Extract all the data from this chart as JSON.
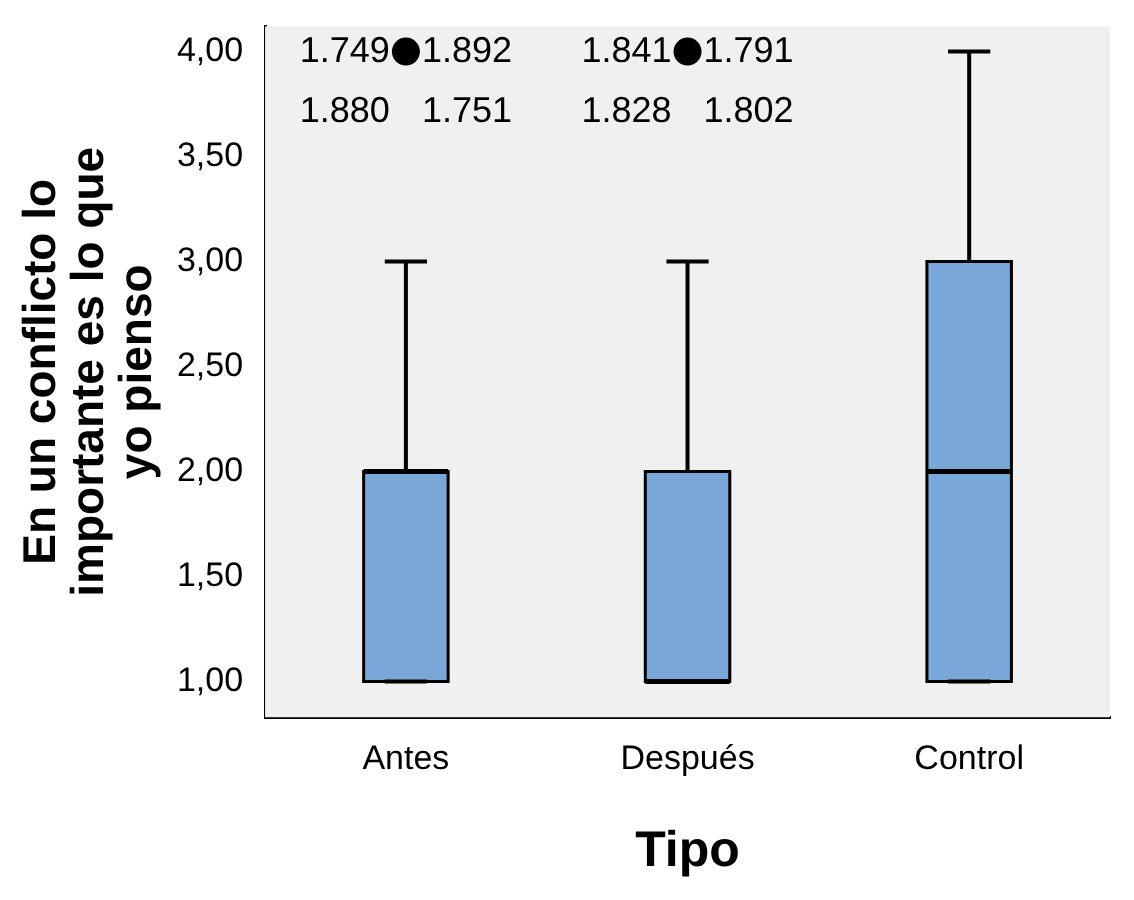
{
  "chart_data": {
    "type": "box",
    "xlabel": "Tipo",
    "ylabel": "En un conflicto lo importante es lo que yo pienso",
    "categories": [
      "Antes",
      "Después",
      "Control"
    ],
    "color": "#79a8d8",
    "boxes": [
      {
        "low": 1,
        "q1": 1,
        "median": 2,
        "q3": 2,
        "high": 3,
        "outliers": [
          4
        ]
      },
      {
        "low": 1,
        "q1": 1,
        "median": 1,
        "q3": 2,
        "high": 3,
        "outliers": [
          4
        ]
      },
      {
        "low": 1,
        "q1": 1,
        "median": 2,
        "q3": 3,
        "high": 4
      }
    ],
    "ylim": [
      0.83,
      4.12
    ],
    "yticks": [
      {
        "value": 1,
        "label": "1,00"
      },
      {
        "value": 1.5,
        "label": "1,50"
      },
      {
        "value": 2,
        "label": "2,00"
      },
      {
        "value": 2.5,
        "label": "2,50"
      },
      {
        "value": 3,
        "label": "3,00"
      },
      {
        "value": 3.5,
        "label": "3,50"
      },
      {
        "value": 4,
        "label": "4,00"
      }
    ],
    "grid": false,
    "legend": false,
    "marker": "circle",
    "annotations": [
      "1.749",
      "1.892",
      "1.880",
      "1.751",
      "1.841",
      "1.791",
      "1.828",
      "1.802"
    ]
  }
}
